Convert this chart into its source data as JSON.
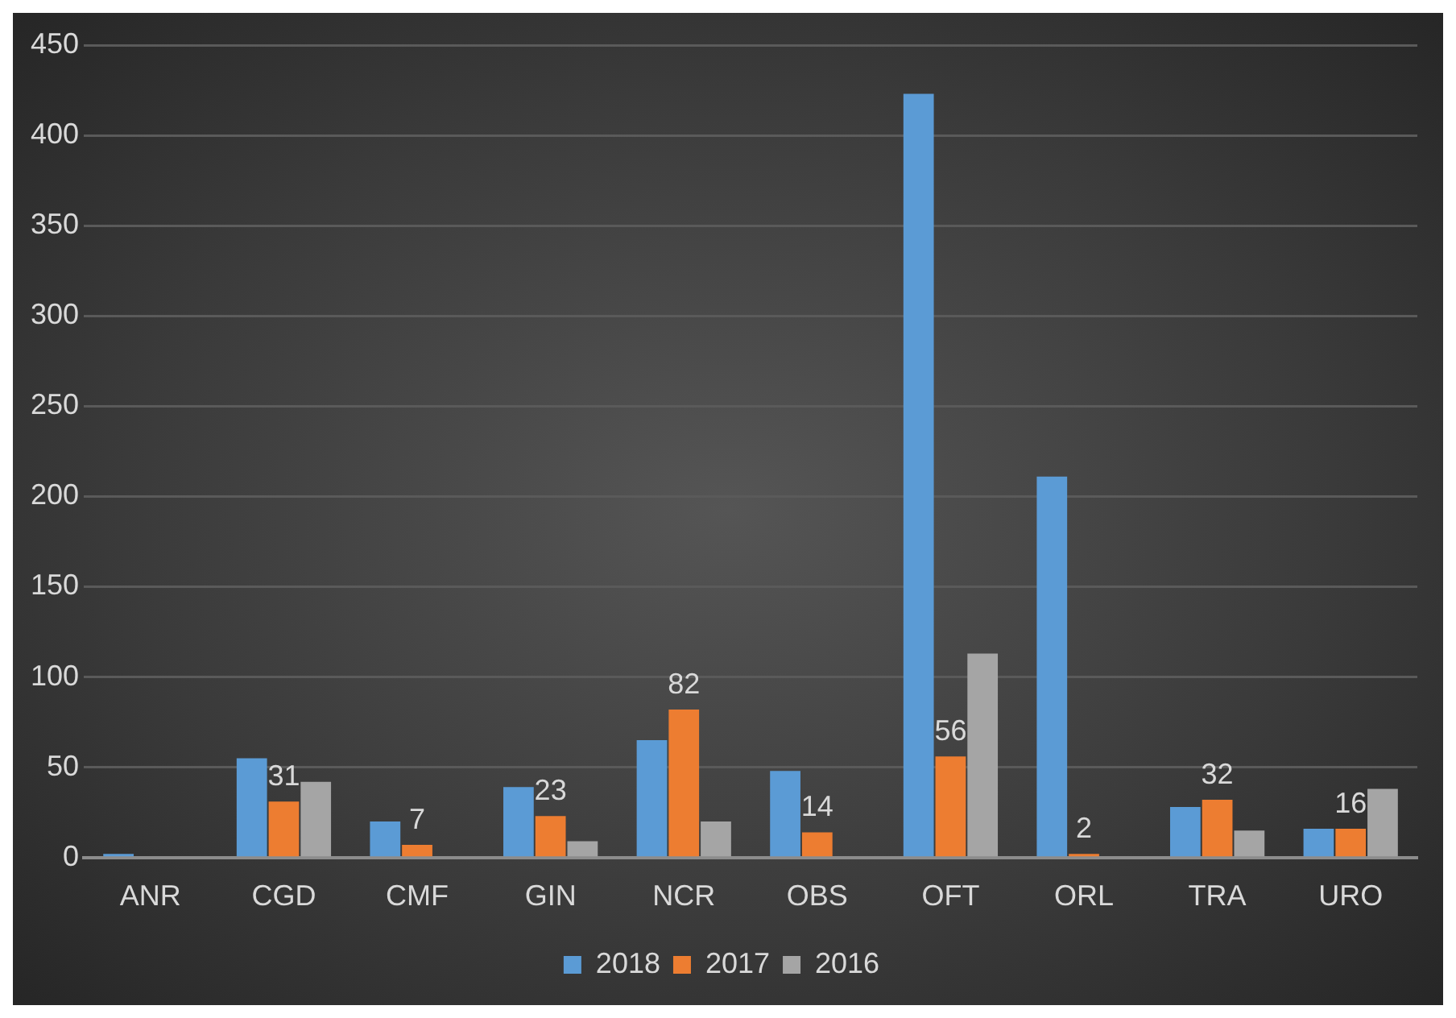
{
  "chart_data": {
    "type": "bar",
    "categories": [
      "ANR",
      "CGD",
      "CMF",
      "GIN",
      "NCR",
      "OBS",
      "OFT",
      "ORL",
      "TRA",
      "URO"
    ],
    "series": [
      {
        "name": "2018",
        "color": "#5b9bd5",
        "values": [
          2,
          55,
          20,
          39,
          65,
          48,
          423,
          211,
          28,
          16
        ]
      },
      {
        "name": "2017",
        "color": "#ed7d31",
        "values": [
          null,
          31,
          7,
          23,
          82,
          14,
          56,
          2,
          32,
          16
        ],
        "value_labels": [
          null,
          "31",
          "7",
          "23",
          "82",
          "14",
          "56",
          "2",
          "32",
          "16"
        ]
      },
      {
        "name": "2016",
        "color": "#a5a5a5",
        "values": [
          null,
          42,
          null,
          9,
          20,
          null,
          113,
          null,
          15,
          38
        ]
      }
    ],
    "ylim": [
      0,
      450
    ],
    "yticks": [
      0,
      50,
      100,
      150,
      200,
      250,
      300,
      350,
      400,
      450
    ],
    "grid": "y",
    "legend": "bottom"
  }
}
